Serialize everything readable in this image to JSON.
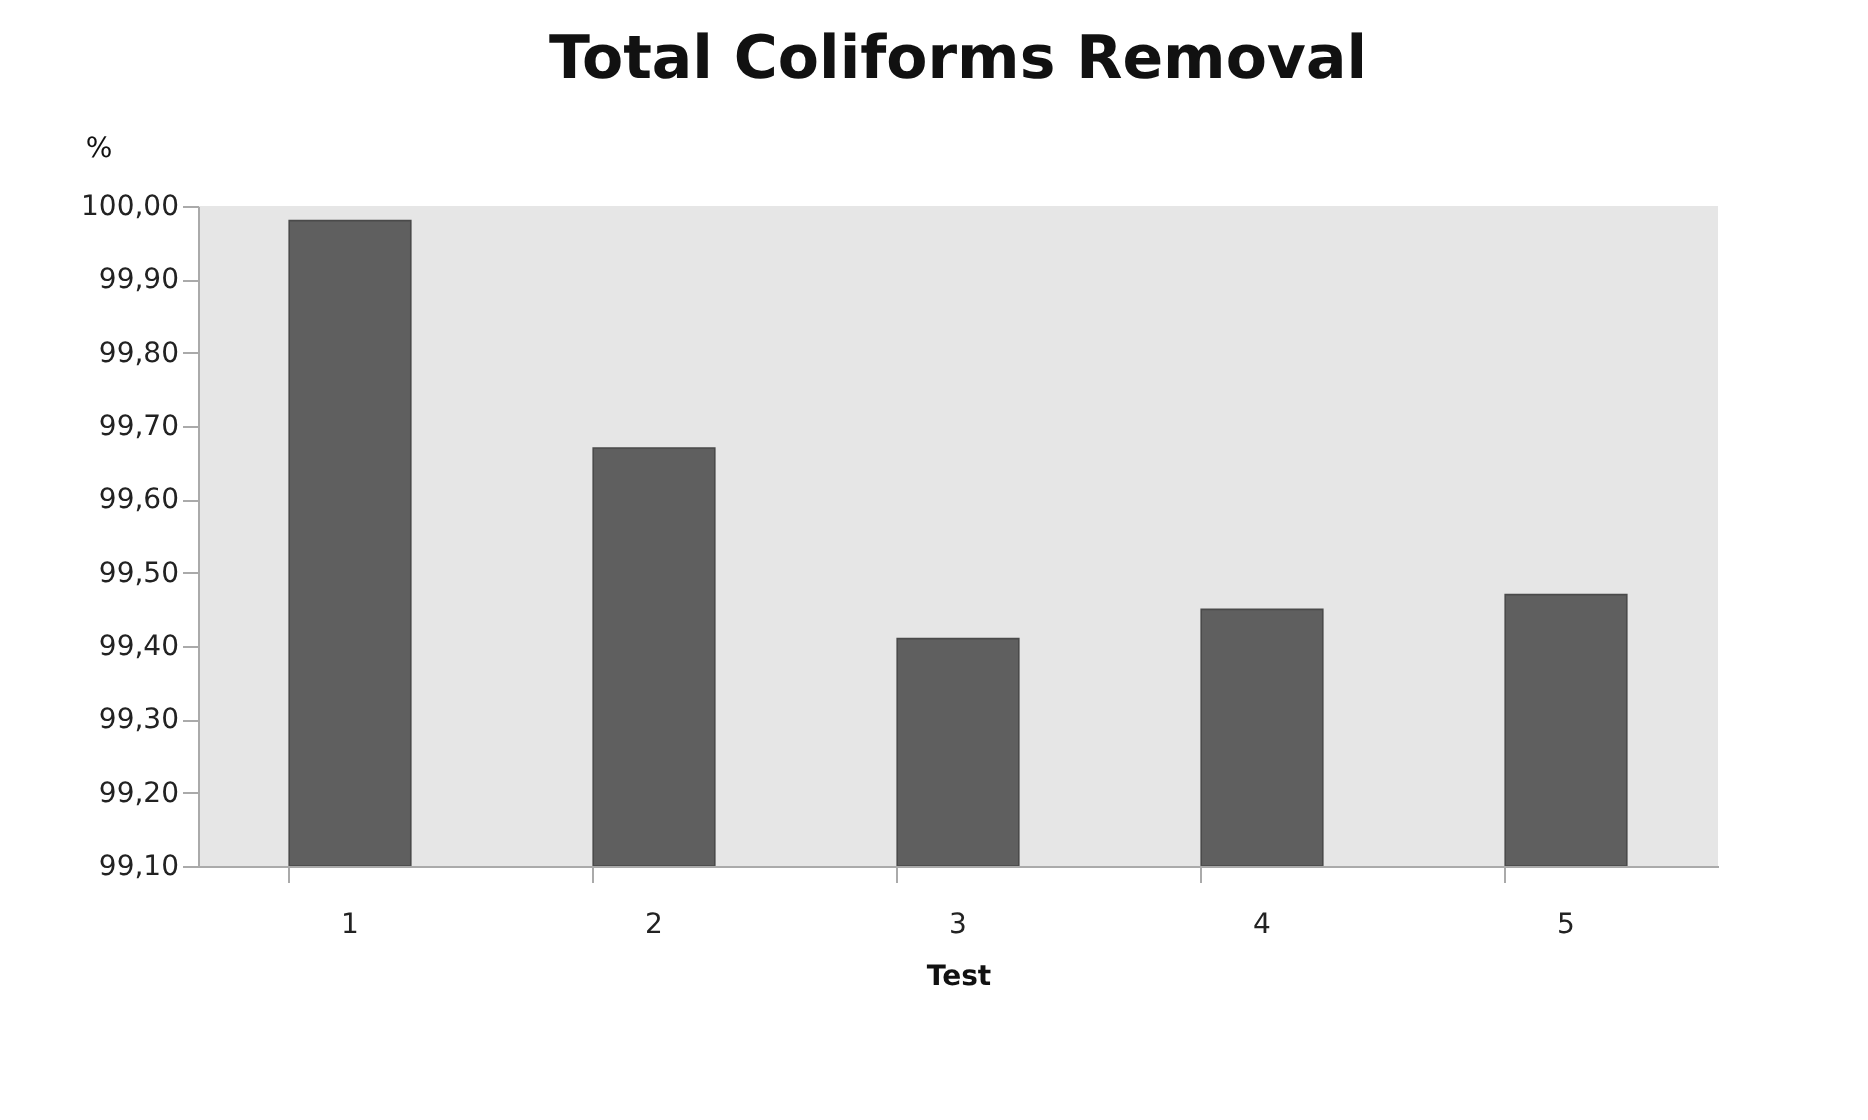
{
  "chart_data": {
    "type": "bar",
    "title": "Total Coliforms Removal",
    "xlabel": "Test",
    "ylabel": "%",
    "categories": [
      "1",
      "2",
      "3",
      "4",
      "5"
    ],
    "values": [
      99.98,
      99.67,
      99.41,
      99.45,
      99.47
    ],
    "color": "#5f5f5f",
    "ylim": [
      99.1,
      100.0
    ],
    "yticks": [
      {
        "value": 99.1,
        "label": "99,10"
      },
      {
        "value": 99.2,
        "label": "99,20"
      },
      {
        "value": 99.3,
        "label": "99,30"
      },
      {
        "value": 99.4,
        "label": "99,40"
      },
      {
        "value": 99.5,
        "label": "99,50"
      },
      {
        "value": 99.6,
        "label": "99,60"
      },
      {
        "value": 99.7,
        "label": "99,70"
      },
      {
        "value": 99.8,
        "label": "99,80"
      },
      {
        "value": 99.9,
        "label": "99,90"
      },
      {
        "value": 100.0,
        "label": "100,00"
      }
    ],
    "grid": false
  }
}
